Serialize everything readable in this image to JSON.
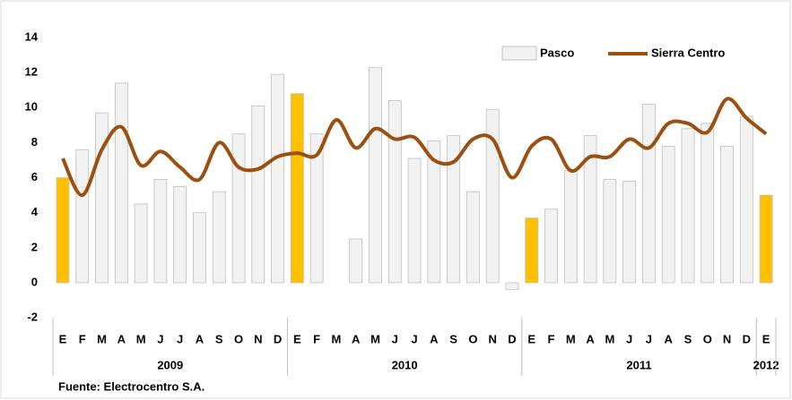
{
  "chart_data": {
    "type": "bar-line",
    "categories": [
      "E",
      "F",
      "M",
      "A",
      "M",
      "J",
      "J",
      "A",
      "S",
      "O",
      "N",
      "D",
      "E",
      "F",
      "M",
      "A",
      "M",
      "J",
      "J",
      "A",
      "S",
      "O",
      "N",
      "D",
      "E",
      "F",
      "M",
      "A",
      "M",
      "J",
      "J",
      "A",
      "S",
      "O",
      "N",
      "D",
      "E"
    ],
    "x_groups": [
      {
        "label": "2009",
        "span": 12
      },
      {
        "label": "2010",
        "span": 12
      },
      {
        "label": "2011",
        "span": 12
      },
      {
        "label": "2012",
        "span": 1
      }
    ],
    "series": [
      {
        "name": "Pasco",
        "kind": "bar",
        "color": "#f2f2f2",
        "colors": [
          "#ffc000",
          "#f2f2f2",
          "#f2f2f2",
          "#f2f2f2",
          "#f2f2f2",
          "#f2f2f2",
          "#f2f2f2",
          "#f2f2f2",
          "#f2f2f2",
          "#f2f2f2",
          "#f2f2f2",
          "#f2f2f2",
          "#ffc000",
          "#f2f2f2",
          "#f2f2f2",
          "#f2f2f2",
          "#f2f2f2",
          "#f2f2f2",
          "#f2f2f2",
          "#f2f2f2",
          "#f2f2f2",
          "#f2f2f2",
          "#f2f2f2",
          "#f2f2f2",
          "#ffc000",
          "#f2f2f2",
          "#f2f2f2",
          "#f2f2f2",
          "#f2f2f2",
          "#f2f2f2",
          "#f2f2f2",
          "#f2f2f2",
          "#f2f2f2",
          "#f2f2f2",
          "#f2f2f2",
          "#f2f2f2",
          "#ffc000"
        ],
        "values": [
          6.0,
          7.6,
          9.7,
          11.4,
          4.5,
          5.9,
          5.5,
          4.0,
          5.2,
          8.5,
          10.1,
          11.9,
          10.8,
          8.5,
          null,
          2.5,
          12.3,
          10.4,
          7.1,
          8.1,
          8.4,
          5.2,
          9.9,
          -0.4,
          3.7,
          4.2,
          6.4,
          8.4,
          5.9,
          5.8,
          10.2,
          7.8,
          8.8,
          9.1,
          7.8,
          9.5,
          5.0
        ]
      },
      {
        "name": "Sierra Centro",
        "kind": "line",
        "color": "#9c4f0e",
        "values": [
          7.1,
          5.0,
          7.6,
          8.9,
          6.7,
          7.5,
          6.6,
          5.9,
          8.0,
          6.6,
          6.5,
          7.2,
          7.4,
          7.3,
          9.3,
          7.7,
          8.8,
          8.2,
          8.3,
          7.0,
          6.9,
          8.2,
          8.2,
          6.0,
          7.8,
          8.2,
          6.4,
          7.2,
          7.2,
          8.2,
          7.7,
          9.1,
          9.1,
          8.6,
          10.5,
          9.4,
          8.5
        ]
      }
    ],
    "ylim": [
      -2,
      14
    ],
    "yticks": [
      -2,
      0,
      2,
      4,
      6,
      8,
      10,
      12,
      14
    ],
    "legend": "top-right",
    "source": "Fuente: Electrocentro S.A."
  }
}
